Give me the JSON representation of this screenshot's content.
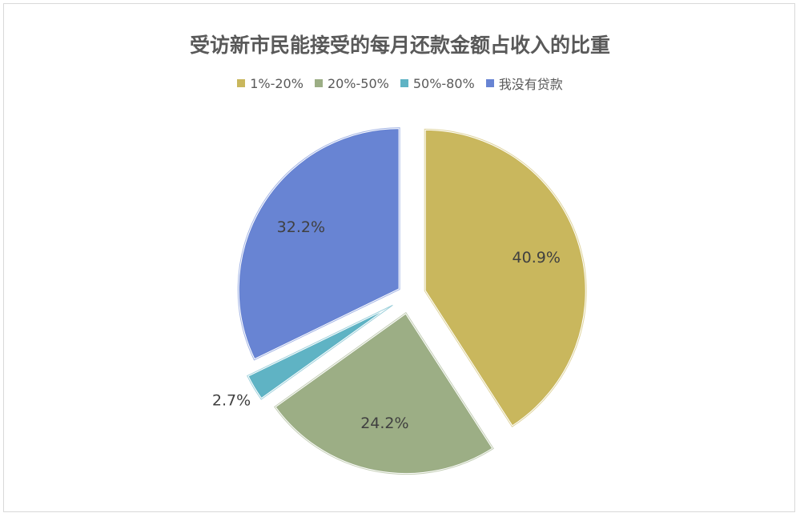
{
  "chart_data": {
    "type": "pie",
    "title": "受访新市民能接受的每月还款金额占收入的比重",
    "legend_position": "top",
    "categories": [
      "1%-20%",
      "20%-50%",
      "50%-80%",
      "我没有贷款"
    ],
    "values": [
      40.9,
      24.2,
      2.7,
      32.2
    ],
    "data_labels": [
      "40.9%",
      "24.2%",
      "2.7%",
      "32.2%"
    ],
    "colors": [
      "#C9B75D",
      "#9CAE85",
      "#5FB3C4",
      "#6884D3"
    ],
    "exploded": true
  }
}
